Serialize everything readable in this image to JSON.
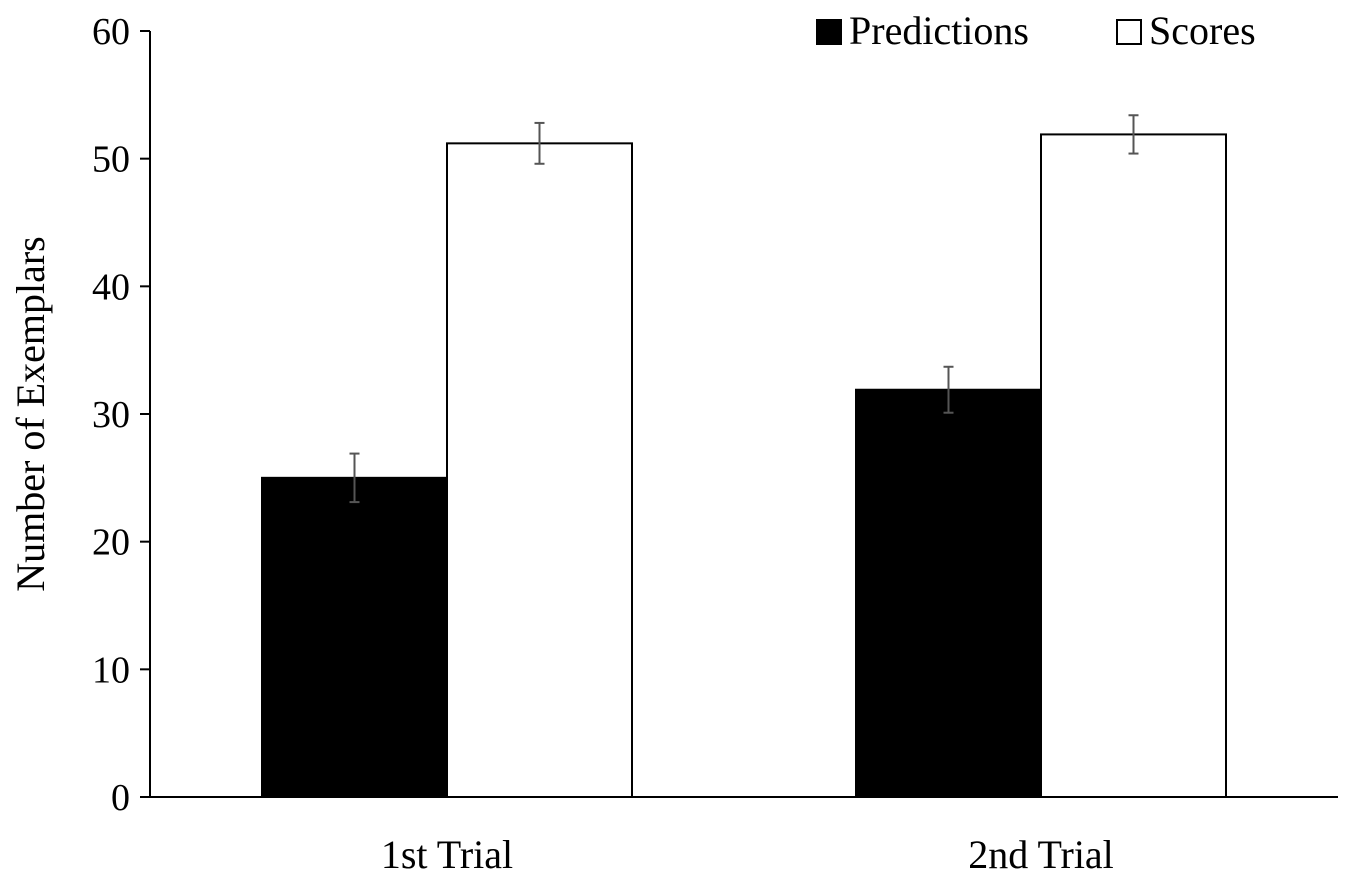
{
  "chart_data": {
    "type": "bar",
    "title": "",
    "xlabel": "",
    "ylabel": "Number of Exemplars",
    "ylim": [
      0,
      60
    ],
    "yticks": [
      0,
      10,
      20,
      30,
      40,
      50,
      60
    ],
    "categories": [
      "1st Trial",
      "2nd Trial"
    ],
    "series": [
      {
        "name": "Predictions",
        "values": [
          25,
          31.9
        ],
        "error": [
          1.9,
          1.8
        ],
        "color": "#000000"
      },
      {
        "name": "Scores",
        "values": [
          51.2,
          51.9
        ],
        "error": [
          1.6,
          1.5
        ],
        "color": "#ffffff"
      }
    ],
    "grid": false,
    "legend": "top-right",
    "error_bars": true
  }
}
